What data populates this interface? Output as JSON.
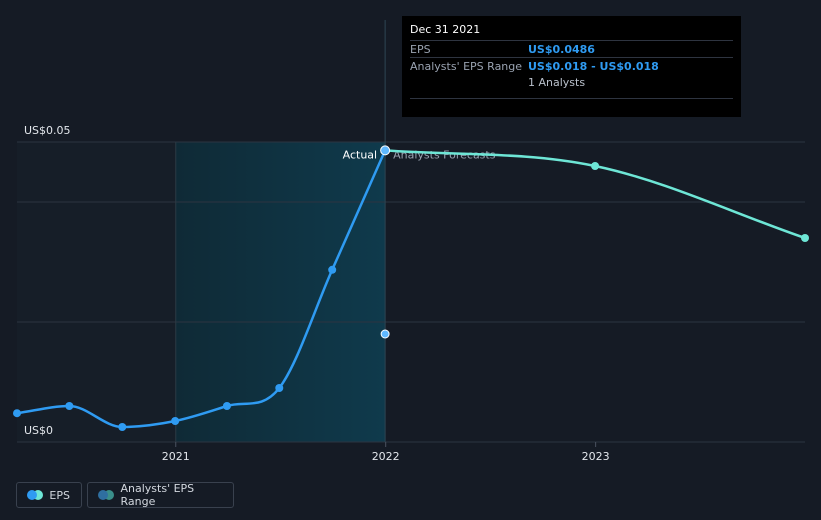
{
  "chart_data": {
    "type": "line",
    "title": "",
    "ylabel": "",
    "y_tick_labels": [
      "US$0.05",
      "US$0"
    ],
    "ylim": [
      0,
      0.05
    ],
    "xlim": [
      "2020-03-31",
      "2023-12-31"
    ],
    "x_tick_labels": [
      "2021",
      "2022",
      "2023"
    ],
    "region_labels": {
      "actual": "Actual",
      "forecast": "Analysts Forecasts"
    },
    "series": [
      {
        "name": "EPS",
        "color": "#2f9bf2",
        "points": [
          {
            "x": "2020-03-31",
            "y": 0.0048
          },
          {
            "x": "2020-06-30",
            "y": 0.006
          },
          {
            "x": "2020-09-30",
            "y": 0.0025
          },
          {
            "x": "2020-12-31",
            "y": 0.0035
          },
          {
            "x": "2021-03-31",
            "y": 0.006
          },
          {
            "x": "2021-06-30",
            "y": 0.009
          },
          {
            "x": "2021-09-30",
            "y": 0.0287
          },
          {
            "x": "2021-12-31",
            "y": 0.0486
          }
        ]
      },
      {
        "name": "Analysts Forecasts",
        "color": "#6ee6d6",
        "points": [
          {
            "x": "2021-12-31",
            "y": 0.0486
          },
          {
            "x": "2022-12-31",
            "y": 0.046
          },
          {
            "x": "2023-12-31",
            "y": 0.034
          }
        ]
      },
      {
        "name": "Analysts' EPS Range",
        "color": "#5fb8ff",
        "points": [
          {
            "x": "2021-12-31",
            "y": 0.018
          }
        ]
      }
    ],
    "highlight_range": {
      "x": [
        "2021-01-01",
        "2021-12-31"
      ]
    },
    "grid": true,
    "tooltip": {
      "date": "Dec 31 2021",
      "eps_label": "EPS",
      "eps_value": "US$0.0486",
      "range_label": "Analysts' EPS Range",
      "range_value": "US$0.018 - US$0.018",
      "analysts": "1 Analysts"
    },
    "legend": [
      {
        "label": "EPS",
        "colors": [
          "#2f9bf2",
          "#6ee6d6"
        ]
      },
      {
        "label": "Analysts' EPS Range",
        "colors": [
          "#2f6fa0",
          "#3a8f8a"
        ]
      }
    ]
  }
}
